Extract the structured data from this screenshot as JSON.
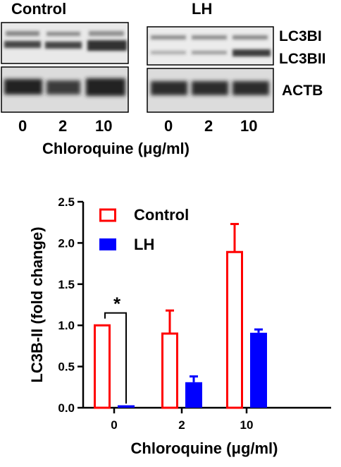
{
  "blot": {
    "groups": [
      "Control",
      "LH"
    ],
    "band_labels": [
      "LC3BI",
      "LC3BII",
      "ACTB"
    ],
    "lanes": [
      "0",
      "2",
      "10"
    ],
    "xlabel": "Chloroquine (μg/ml)"
  },
  "chart_data": {
    "type": "bar",
    "categories": [
      "0",
      "2",
      "10"
    ],
    "series": [
      {
        "name": "Control",
        "values": [
          1.0,
          0.9,
          1.89
        ],
        "errors": [
          0.0,
          0.28,
          0.34
        ],
        "color": "#ff0000",
        "style": "outline"
      },
      {
        "name": "LH",
        "values": [
          0.03,
          0.31,
          0.91
        ],
        "errors": [
          0.0,
          0.07,
          0.04
        ],
        "color": "#0000ff",
        "style": "filled"
      }
    ],
    "xlabel": "Chloroquine (μg/ml)",
    "ylabel": "LC3B-II (fold change)",
    "ylim": [
      0,
      2.5
    ],
    "yticks": [
      "0.0",
      "0.5",
      "1.0",
      "1.5",
      "2.0",
      "2.5"
    ],
    "legend_position": "top-left",
    "annotations": [
      {
        "text": "*",
        "between": [
          "Control 0",
          "LH 0"
        ]
      }
    ],
    "grid": false
  }
}
